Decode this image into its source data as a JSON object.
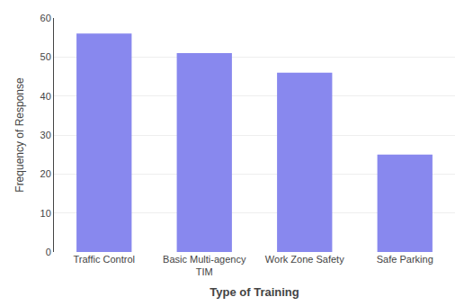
{
  "chart_data": {
    "type": "bar",
    "categories": [
      "Traffic Control",
      "Basic Multi-agency\nTIM",
      "Work Zone Safety",
      "Safe Parking"
    ],
    "values": [
      56,
      51,
      46,
      25
    ],
    "color": "#8888ee",
    "xlabel": "Type of Training",
    "ylabel": "Frequency of Response",
    "ylim": [
      0,
      60
    ],
    "yticks": [
      0,
      10,
      20,
      30,
      40,
      50,
      60
    ],
    "grid": true
  }
}
